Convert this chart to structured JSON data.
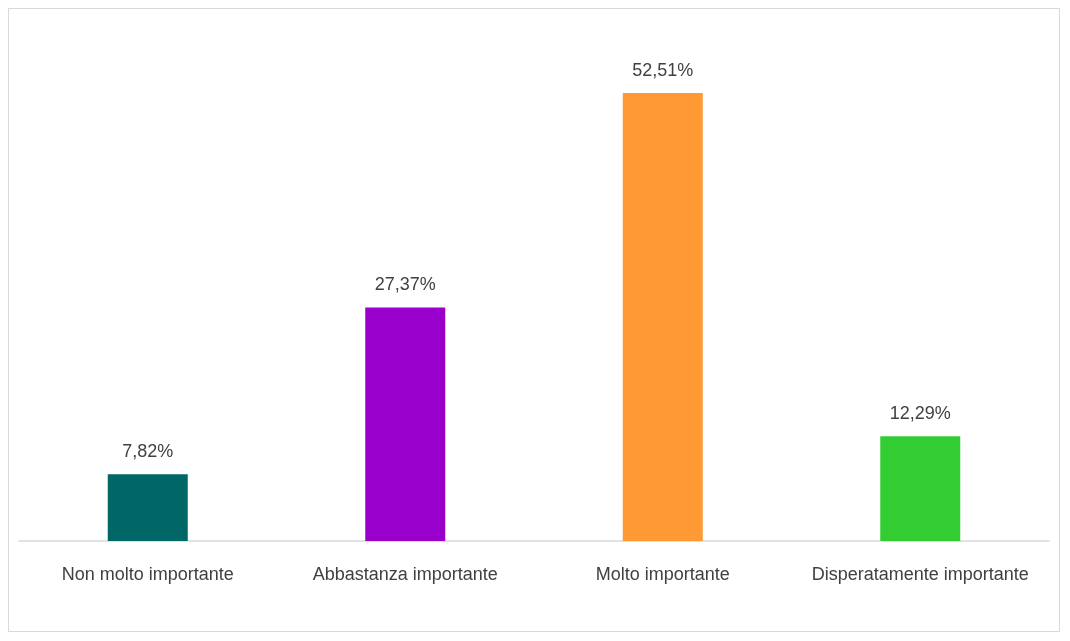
{
  "chart_data": {
    "type": "bar",
    "categories": [
      "Non molto importante",
      "Abbastanza importante",
      "Molto importante",
      "Disperatamente importante"
    ],
    "values": [
      7.82,
      27.37,
      52.51,
      12.29
    ],
    "value_labels": [
      "7,82%",
      "27,37%",
      "52,51%",
      "12,29%"
    ],
    "colors": [
      "#006666",
      "#9900cc",
      "#ff9933",
      "#33cc33"
    ]
  }
}
